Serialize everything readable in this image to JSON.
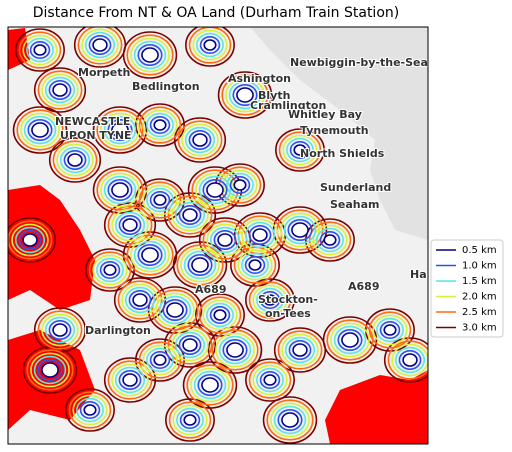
{
  "title": "Distance From NT & OA Land (Durham Train Station)",
  "legend": [
    {
      "label": "0.5 km",
      "color": "#00008b"
    },
    {
      "label": "1.0 km",
      "color": "#2a52f0"
    },
    {
      "label": "1.5 km",
      "color": "#5ce6e0"
    },
    {
      "label": "2.0 km",
      "color": "#d6f23a"
    },
    {
      "label": "2.5 km",
      "color": "#ff6a10"
    },
    {
      "label": "3.0 km",
      "color": "#7a0000"
    }
  ],
  "map_labels": [
    "Newbiggin-by-the-Sea",
    "Morpeth",
    "Ashington",
    "Bedlington",
    "Blyth",
    "Cramlington",
    "Whitley Bay",
    "NEWCASTLE",
    "UPON TYNE",
    "Tynemouth",
    "North Shields",
    "Sunderland",
    "Seaham",
    "Stockton-",
    "on-Tees",
    "Darlington",
    "Hartl",
    "A689",
    "A689"
  ]
}
